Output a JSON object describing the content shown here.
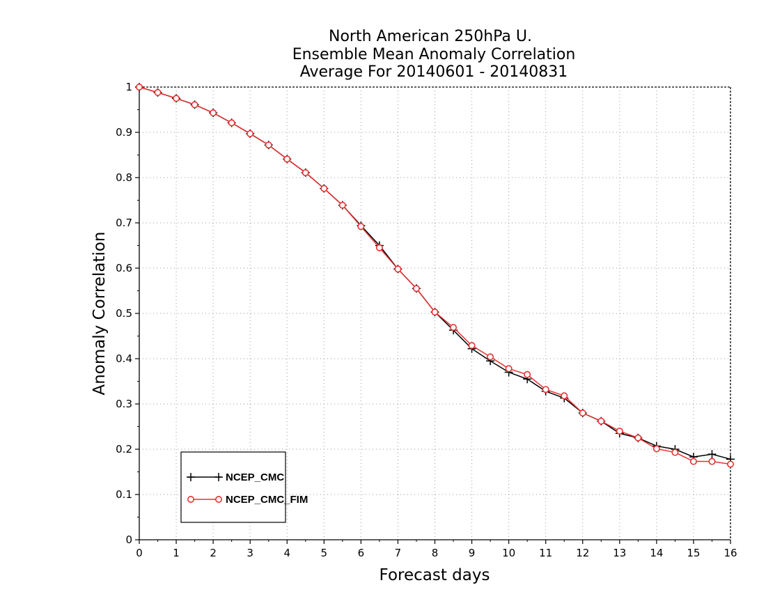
{
  "chart_data": {
    "type": "line",
    "title": [
      "North American 250hPa U.",
      "Ensemble Mean Anomaly Correlation",
      "Average For 20140601 - 20140831"
    ],
    "xlabel": "Forecast days",
    "ylabel": "Anomaly Correlation",
    "xlim": [
      0,
      16
    ],
    "ylim": [
      0,
      1
    ],
    "xticks": [
      "0",
      "1",
      "2",
      "3",
      "4",
      "5",
      "6",
      "7",
      "8",
      "9",
      "10",
      "11",
      "12",
      "13",
      "14",
      "15",
      "16"
    ],
    "yticks": [
      "0",
      "0.1",
      "0.2",
      "0.3",
      "0.4",
      "0.5",
      "0.6",
      "0.7",
      "0.8",
      "0.9",
      "1"
    ],
    "grid": true,
    "legend_position": "lower-left",
    "x": [
      0,
      0.5,
      1,
      1.5,
      2,
      2.5,
      3,
      3.5,
      4,
      4.5,
      5,
      5.5,
      6,
      6.5,
      7,
      7.5,
      8,
      8.5,
      9,
      9.5,
      10,
      10.5,
      11,
      11.5,
      12,
      12.5,
      13,
      13.5,
      14,
      14.5,
      15,
      15.5,
      16
    ],
    "series": [
      {
        "name": "NCEP_CMC",
        "color": "#000000",
        "marker": "plus",
        "values": [
          1.0,
          0.988,
          0.975,
          0.961,
          0.943,
          0.921,
          0.897,
          0.872,
          0.841,
          0.811,
          0.776,
          0.739,
          0.694,
          0.65,
          0.598,
          0.555,
          0.503,
          0.463,
          0.422,
          0.395,
          0.37,
          0.355,
          0.328,
          0.313,
          0.28,
          0.262,
          0.235,
          0.225,
          0.207,
          0.2,
          0.183,
          0.189,
          0.178
        ]
      },
      {
        "name": "NCEP_CMC_FIM",
        "color": "#e83030",
        "marker": "circle",
        "values": [
          1.0,
          0.988,
          0.975,
          0.961,
          0.943,
          0.921,
          0.897,
          0.872,
          0.841,
          0.811,
          0.776,
          0.739,
          0.692,
          0.645,
          0.598,
          0.555,
          0.503,
          0.469,
          0.429,
          0.404,
          0.378,
          0.365,
          0.332,
          0.318,
          0.28,
          0.262,
          0.24,
          0.225,
          0.201,
          0.193,
          0.173,
          0.173,
          0.167
        ]
      }
    ]
  }
}
